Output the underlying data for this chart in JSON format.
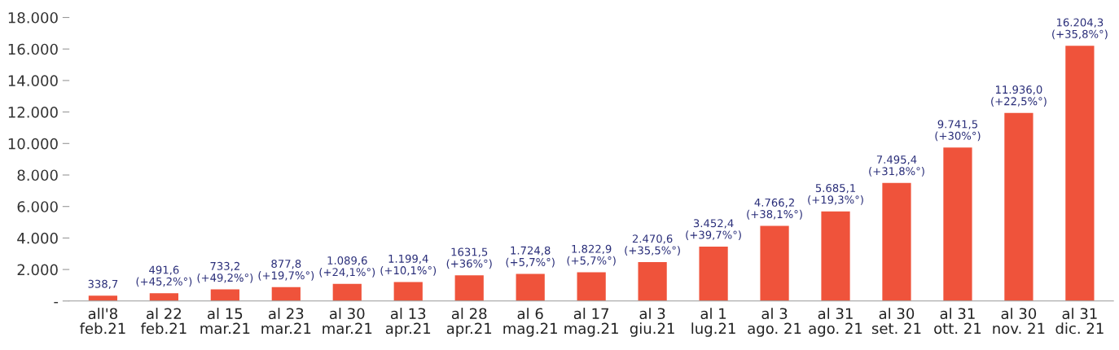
{
  "chart_data": {
    "type": "bar",
    "categories": [
      "all'8\nfeb.21",
      "al 22\nfeb.21",
      "al 15\nmar.21",
      "al 23\nmar.21",
      "al 30\nmar.21",
      "al 13\napr.21",
      "al 28\napr.21",
      "al 6\nmag.21",
      "al 17\nmag.21",
      "al 3\ngiu.21",
      "al 1\nlug.21",
      "al 3\nago. 21",
      "al 31\nago. 21",
      "al 30\nset. 21",
      "al 31\nott. 21",
      "al 30\nnov. 21",
      "al 31\ndic. 21"
    ],
    "values": [
      338.7,
      491.6,
      733.2,
      877.8,
      1089.6,
      1199.4,
      1631.5,
      1724.8,
      1822.9,
      2470.6,
      3452.4,
      4766.2,
      5685.1,
      7495.4,
      9741.5,
      11936.0,
      16204.3
    ],
    "value_labels": [
      "338,7",
      "491,6\n(+45,2%°)",
      "733,2\n(+49,2%°)",
      "877,8\n(+19,7%°)",
      "1.089,6\n(+24,1%°)",
      "1.199,4\n(+10,1%°)",
      "1631,5\n(+36%°)",
      "1.724,8\n(+5,7%°)",
      "1.822,9\n(+5,7%°)",
      "2.470,6\n(+35,5%°)",
      "3.452,4\n(+39,7%°)",
      "4.766,2\n(+38,1%°)",
      "5.685,1\n(+19,3%°)",
      "7.495,4\n(+31,8%°)",
      "9.741,5\n(+30%°)",
      "11.936,0\n(+22,5%°)",
      "16.204,3\n(+35,8%°)"
    ],
    "color": "#ef533b",
    "ylim": [
      0,
      18000
    ],
    "yticks": [
      {
        "value": 0,
        "label": "-"
      },
      {
        "value": 2000,
        "label": "2.000"
      },
      {
        "value": 4000,
        "label": "4.000"
      },
      {
        "value": 6000,
        "label": "6.000"
      },
      {
        "value": 8000,
        "label": "8.000"
      },
      {
        "value": 10000,
        "label": "10.000"
      },
      {
        "value": 12000,
        "label": "12.000"
      },
      {
        "value": 14000,
        "label": "14.000"
      },
      {
        "value": 16000,
        "label": "16.000"
      },
      {
        "value": 18000,
        "label": "18.000"
      }
    ],
    "grid": false,
    "legend": false
  }
}
